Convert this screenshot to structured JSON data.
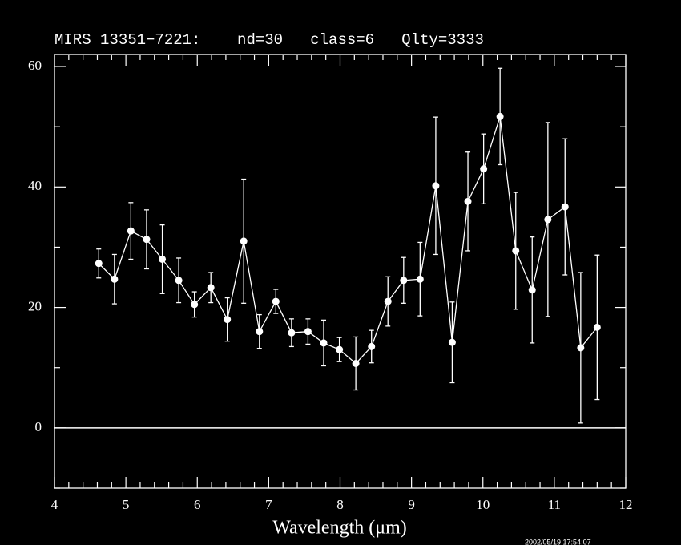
{
  "chart_data": {
    "type": "errorbar",
    "title": "MIRS 13351−7221:    nd=30   class=6   Qlty=3333",
    "x_label": "Wavelength (μm)",
    "timestamp": "2002/05/19 17:54:07",
    "x": [
      4.62,
      4.84,
      5.07,
      5.29,
      5.51,
      5.74,
      5.96,
      6.19,
      6.42,
      6.65,
      6.87,
      7.1,
      7.32,
      7.55,
      7.77,
      7.99,
      8.22,
      8.44,
      8.67,
      8.89,
      9.12,
      9.34,
      9.57,
      9.79,
      10.01,
      10.24,
      10.46,
      10.69,
      10.91,
      11.15,
      11.37,
      11.6
    ],
    "values": [
      27.3,
      24.7,
      32.7,
      31.3,
      28.0,
      24.5,
      20.5,
      23.3,
      18.0,
      31.0,
      16.0,
      21.0,
      15.8,
      16.0,
      14.1,
      13.0,
      10.7,
      13.5,
      21.0,
      24.5,
      24.7,
      40.2,
      14.2,
      37.6,
      43.0,
      51.7,
      29.4,
      22.9,
      34.6,
      36.7,
      13.3,
      16.7
    ],
    "errors": [
      2.4,
      4.1,
      4.7,
      4.9,
      5.7,
      3.7,
      2.1,
      2.5,
      3.6,
      10.3,
      2.8,
      2.0,
      2.3,
      2.1,
      3.8,
      2.0,
      4.4,
      2.7,
      4.1,
      3.8,
      6.1,
      11.4,
      6.7,
      8.2,
      5.8,
      8.0,
      9.7,
      8.8,
      16.1,
      11.3,
      12.5,
      12.0
    ],
    "color": "#ffffff",
    "xlim": [
      4,
      12
    ],
    "ylim": [
      -10,
      62
    ],
    "xticks": [
      4,
      5,
      6,
      7,
      8,
      9,
      10,
      11,
      12
    ],
    "yticks": [
      0,
      20,
      40,
      60
    ],
    "xminorticks": [
      4.2,
      4.4,
      4.6,
      4.8,
      5.2,
      5.4,
      5.6,
      5.8,
      6.2,
      6.4,
      6.6,
      6.8,
      7.2,
      7.4,
      7.6,
      7.8,
      8.2,
      8.4,
      8.6,
      8.8,
      9.2,
      9.4,
      9.6,
      9.8,
      10.2,
      10.4,
      10.6,
      10.8,
      11.2,
      11.4,
      11.6,
      11.8
    ],
    "yminorticks": [
      -10,
      10,
      30,
      50
    ],
    "zero_line": true
  }
}
